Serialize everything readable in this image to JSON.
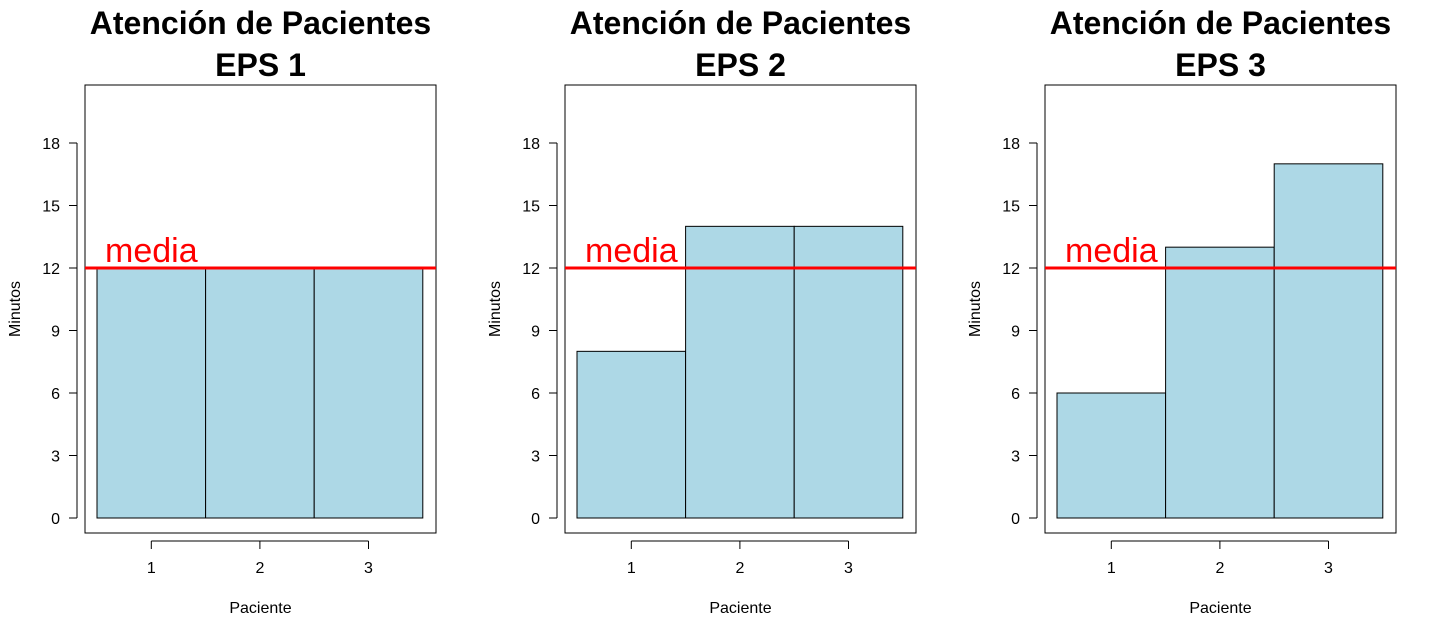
{
  "colors": {
    "bar_fill": "#add8e6",
    "bar_stroke": "#000000",
    "mean_line": "#ff0000",
    "axis": "#000000"
  },
  "chart_data": [
    {
      "type": "bar",
      "title": "Atención de Pacientes",
      "subtitle": "EPS 1",
      "xlabel": "Paciente",
      "ylabel": "Minutos",
      "categories": [
        "1",
        "2",
        "3"
      ],
      "values": [
        12,
        12,
        12
      ],
      "yticks": [
        0,
        3,
        6,
        9,
        12,
        15,
        18
      ],
      "ylim": [
        0,
        20
      ],
      "reference_line": {
        "value": 12,
        "label": "media"
      },
      "grid": false
    },
    {
      "type": "bar",
      "title": "Atención de Pacientes",
      "subtitle": "EPS 2",
      "xlabel": "Paciente",
      "ylabel": "Minutos",
      "categories": [
        "1",
        "2",
        "3"
      ],
      "values": [
        8,
        14,
        14
      ],
      "yticks": [
        0,
        3,
        6,
        9,
        12,
        15,
        18
      ],
      "ylim": [
        0,
        20
      ],
      "reference_line": {
        "value": 12,
        "label": "media"
      },
      "grid": false
    },
    {
      "type": "bar",
      "title": "Atención de Pacientes",
      "subtitle": "EPS 3",
      "xlabel": "Paciente",
      "ylabel": "Minutos",
      "categories": [
        "1",
        "2",
        "3"
      ],
      "values": [
        6,
        13,
        17
      ],
      "yticks": [
        0,
        3,
        6,
        9,
        12,
        15,
        18
      ],
      "ylim": [
        0,
        20
      ],
      "reference_line": {
        "value": 12,
        "label": "media"
      },
      "grid": false
    }
  ]
}
